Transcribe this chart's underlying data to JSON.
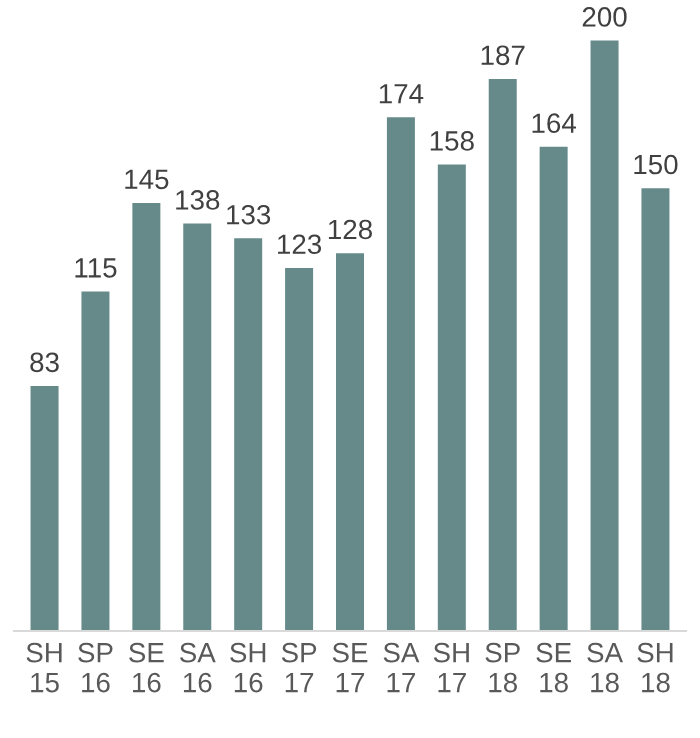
{
  "chart_data": {
    "type": "bar",
    "categories": [
      "SH\n15",
      "SP\n16",
      "SE\n16",
      "SA\n16",
      "SH\n16",
      "SP\n17",
      "SE\n17",
      "SA\n17",
      "SH\n17",
      "SP\n18",
      "SE\n18",
      "SA\n18",
      "SH\n18"
    ],
    "values": [
      83,
      115,
      145,
      138,
      133,
      123,
      128,
      174,
      158,
      187,
      164,
      200,
      150
    ],
    "color": "#668a8a",
    "data_labels": true,
    "grid": false,
    "legend": false
  }
}
